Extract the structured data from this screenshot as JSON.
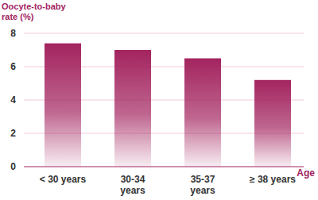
{
  "chart_data": {
    "type": "bar",
    "y_label": "Oocyte-to-baby rate (%)",
    "x_label": "Age",
    "categories": [
      "< 30 years",
      "30-34 years",
      "35-37 years",
      "≥ 38 years"
    ],
    "values": [
      7.4,
      7.0,
      6.5,
      5.2
    ],
    "color": "#a3245f",
    "ylim": [
      0,
      8
    ],
    "yticks": [
      0,
      2,
      4,
      6,
      8
    ],
    "grid": true
  }
}
